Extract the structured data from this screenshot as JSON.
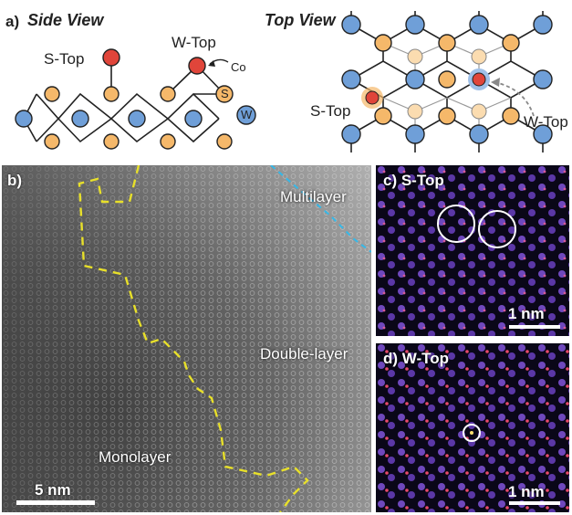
{
  "panel_a": {
    "letter": "a)",
    "side_view": {
      "title": "Side View",
      "s_top": "S-Top",
      "w_top": "W-Top",
      "co": "Co",
      "s": "S",
      "w": "W"
    },
    "top_view": {
      "title": "Top View",
      "s_top": "S-Top",
      "w_top": "W-Top"
    }
  },
  "panel_b": {
    "letter": "b)",
    "multilayer": "Multilayer",
    "double_layer": "Double-layer",
    "monolayer": "Monolayer",
    "scale_bar": "5 nm"
  },
  "panel_c": {
    "label": "c) S-Top",
    "scale_bar": "1 nm"
  },
  "panel_d": {
    "label": "d) W-Top",
    "scale_bar": "1 nm"
  },
  "colors": {
    "w_atom": "#6f9fd8",
    "s_atom": "#f5b86a",
    "co_atom": "#e0453a",
    "boundary_yellow": "#e8e02a",
    "boundary_cyan": "#35b8e8"
  }
}
